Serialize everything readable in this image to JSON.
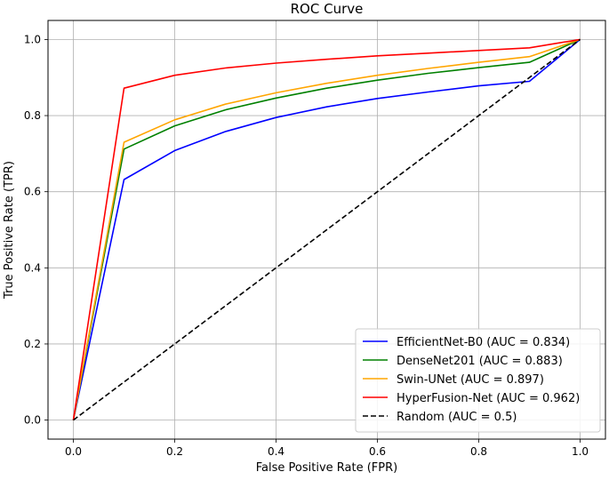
{
  "chart_data": {
    "type": "line",
    "title": "ROC Curve",
    "xlabel": "False Positive Rate (FPR)",
    "ylabel": "True Positive Rate (TPR)",
    "xlim": [
      -0.05,
      1.05
    ],
    "ylim": [
      -0.05,
      1.05
    ],
    "xticks": [
      0.0,
      0.2,
      0.4,
      0.6,
      0.8,
      1.0
    ],
    "yticks": [
      0.0,
      0.2,
      0.4,
      0.6,
      0.8,
      1.0
    ],
    "xtick_labels": [
      "0.0",
      "0.2",
      "0.4",
      "0.6",
      "0.8",
      "1.0"
    ],
    "ytick_labels": [
      "0.0",
      "0.2",
      "0.4",
      "0.6",
      "0.8",
      "1.0"
    ],
    "grid": true,
    "legend_position": "lower-right",
    "series": [
      {
        "name": "EfficientNet-B0 (AUC = 0.834)",
        "color": "#0000ff",
        "dash": "solid",
        "x": [
          0.0,
          0.1,
          0.2,
          0.3,
          0.4,
          0.5,
          0.6,
          0.7,
          0.8,
          0.9,
          1.0
        ],
        "y": [
          0.0,
          0.632,
          0.708,
          0.758,
          0.795,
          0.823,
          0.845,
          0.862,
          0.878,
          0.89,
          1.0
        ]
      },
      {
        "name": "DenseNet201 (AUC = 0.883)",
        "color": "#008000",
        "dash": "solid",
        "x": [
          0.0,
          0.1,
          0.2,
          0.3,
          0.4,
          0.5,
          0.6,
          0.7,
          0.8,
          0.9,
          1.0
        ],
        "y": [
          0.0,
          0.712,
          0.773,
          0.815,
          0.846,
          0.872,
          0.893,
          0.911,
          0.926,
          0.94,
          1.0
        ]
      },
      {
        "name": "Swin-UNet (AUC = 0.897)",
        "color": "#ffa500",
        "dash": "solid",
        "x": [
          0.0,
          0.1,
          0.2,
          0.3,
          0.4,
          0.5,
          0.6,
          0.7,
          0.8,
          0.9,
          1.0
        ],
        "y": [
          0.0,
          0.73,
          0.789,
          0.83,
          0.86,
          0.885,
          0.906,
          0.924,
          0.94,
          0.955,
          1.0
        ]
      },
      {
        "name": "HyperFusion-Net (AUC = 0.962)",
        "color": "#ff0000",
        "dash": "solid",
        "x": [
          0.0,
          0.1,
          0.2,
          0.3,
          0.4,
          0.5,
          0.6,
          0.7,
          0.8,
          0.9,
          1.0
        ],
        "y": [
          0.0,
          0.872,
          0.906,
          0.925,
          0.938,
          0.948,
          0.957,
          0.964,
          0.971,
          0.978,
          1.0
        ]
      },
      {
        "name": "Random (AUC = 0.5)",
        "color": "#000000",
        "dash": "dashed",
        "x": [
          0.0,
          1.0
        ],
        "y": [
          0.0,
          1.0
        ]
      }
    ]
  }
}
